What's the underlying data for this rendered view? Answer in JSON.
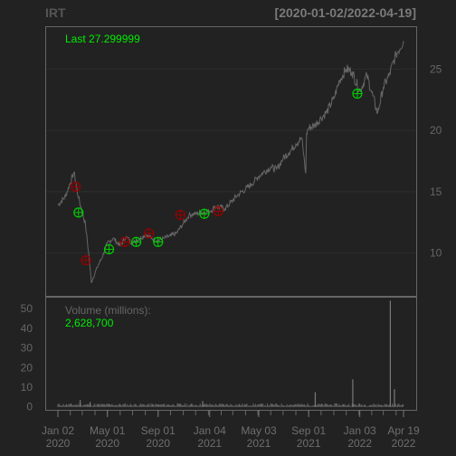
{
  "header": {
    "symbol": "IRT",
    "date_range": "[2020-01-02/2022-04-19]"
  },
  "price_panel": {
    "last_label": "Last 27.299999"
  },
  "volume_panel": {
    "label": "Volume (millions):",
    "last_value": "2,628,700"
  },
  "colors": {
    "background": "#222222",
    "panel_border": "#666666",
    "grid": "#2e2e2e",
    "price_line": "#666666",
    "buy_marker": "#00cc00",
    "sell_marker": "#990000",
    "label_green": "#00ee00"
  },
  "chart_data": {
    "type": "line",
    "price": {
      "x": [
        "2020-01-02",
        "2020-01-20",
        "2020-02-10",
        "2020-02-21",
        "2020-03-09",
        "2020-03-18",
        "2020-03-23",
        "2020-04-06",
        "2020-04-20",
        "2020-05-01",
        "2020-05-15",
        "2020-06-01",
        "2020-06-15",
        "2020-07-01",
        "2020-07-15",
        "2020-08-01",
        "2020-08-15",
        "2020-09-01",
        "2020-09-15",
        "2020-10-01",
        "2020-10-15",
        "2020-11-01",
        "2020-11-15",
        "2020-12-01",
        "2020-12-15",
        "2021-01-04",
        "2021-01-20",
        "2021-02-10",
        "2021-03-01",
        "2021-03-15",
        "2021-04-01",
        "2021-04-15",
        "2021-05-01",
        "2021-05-15",
        "2021-06-01",
        "2021-06-15",
        "2021-07-01",
        "2021-07-15",
        "2021-08-01",
        "2021-08-15",
        "2021-08-25",
        "2021-08-27",
        "2021-09-01",
        "2021-09-15",
        "2021-10-01",
        "2021-10-15",
        "2021-11-01",
        "2021-11-15",
        "2021-12-01",
        "2021-12-15",
        "2022-01-03",
        "2022-01-20",
        "2022-02-01",
        "2022-02-15",
        "2022-03-01",
        "2022-03-15",
        "2022-04-01",
        "2022-04-19"
      ],
      "close": [
        13.9,
        14.6,
        16.6,
        14.5,
        12.3,
        9.5,
        7.6,
        8.8,
        9.8,
        10.8,
        11.2,
        10.6,
        11.3,
        10.8,
        11.1,
        11.5,
        11.2,
        11.0,
        11.2,
        11.4,
        11.6,
        12.4,
        13.1,
        13.2,
        13.3,
        13.4,
        13.8,
        13.6,
        14.3,
        14.8,
        15.2,
        15.6,
        16.2,
        16.6,
        17.0,
        16.8,
        17.7,
        18.2,
        18.9,
        19.4,
        16.5,
        19.8,
        20.2,
        20.4,
        21.0,
        21.5,
        22.6,
        24.1,
        25.0,
        24.8,
        23.2,
        24.5,
        23.1,
        21.4,
        23.5,
        24.5,
        26.2,
        27.3
      ],
      "buy_signals": [
        {
          "date": "2020-02-21",
          "price": 13.3
        },
        {
          "date": "2020-05-05",
          "price": 10.3
        },
        {
          "date": "2020-07-10",
          "price": 10.9
        },
        {
          "date": "2020-09-01",
          "price": 10.9
        },
        {
          "date": "2020-12-22",
          "price": 13.2
        },
        {
          "date": "2021-12-28",
          "price": 23.0
        }
      ],
      "sell_signals": [
        {
          "date": "2020-02-14",
          "price": 15.4
        },
        {
          "date": "2020-03-10",
          "price": 9.4
        },
        {
          "date": "2020-06-12",
          "price": 10.9
        },
        {
          "date": "2020-08-10",
          "price": 11.6
        },
        {
          "date": "2020-10-25",
          "price": 13.1
        },
        {
          "date": "2021-01-25",
          "price": 13.4
        }
      ],
      "ylim": [
        6.5,
        28.5
      ],
      "y_ticks": [
        10,
        15,
        20,
        25
      ]
    },
    "volume": {
      "unit": "millions",
      "ylim": [
        -1.5,
        56
      ],
      "y_ticks": [
        0,
        10,
        20,
        30,
        40,
        50
      ],
      "spikes": [
        {
          "date": "2020-02-25",
          "value": 3.5
        },
        {
          "date": "2020-03-20",
          "value": 2.5
        },
        {
          "date": "2020-12-18",
          "value": 3.0
        },
        {
          "date": "2021-09-17",
          "value": 7.5
        },
        {
          "date": "2021-12-17",
          "value": 14.0
        },
        {
          "date": "2022-03-18",
          "value": 54.0
        },
        {
          "date": "2022-03-28",
          "value": 9.0
        }
      ]
    },
    "x_ticks": [
      {
        "date": "2020-01-02",
        "line1": "Jan 02",
        "line2": "2020"
      },
      {
        "date": "2020-05-01",
        "line1": "May 01",
        "line2": "2020"
      },
      {
        "date": "2020-09-01",
        "line1": "Sep 01",
        "line2": "2020"
      },
      {
        "date": "2021-01-04",
        "line1": "Jan 04",
        "line2": "2021"
      },
      {
        "date": "2021-05-03",
        "line1": "May 03",
        "line2": "2021"
      },
      {
        "date": "2021-09-01",
        "line1": "Sep 01",
        "line2": "2021"
      },
      {
        "date": "2022-01-03",
        "line1": "Jan 03",
        "line2": "2022"
      },
      {
        "date": "2022-04-19",
        "line1": "Apr 19",
        "line2": "2022"
      }
    ],
    "x_range": [
      "2020-01-02",
      "2022-04-19"
    ],
    "grid": true,
    "legend": "none"
  }
}
